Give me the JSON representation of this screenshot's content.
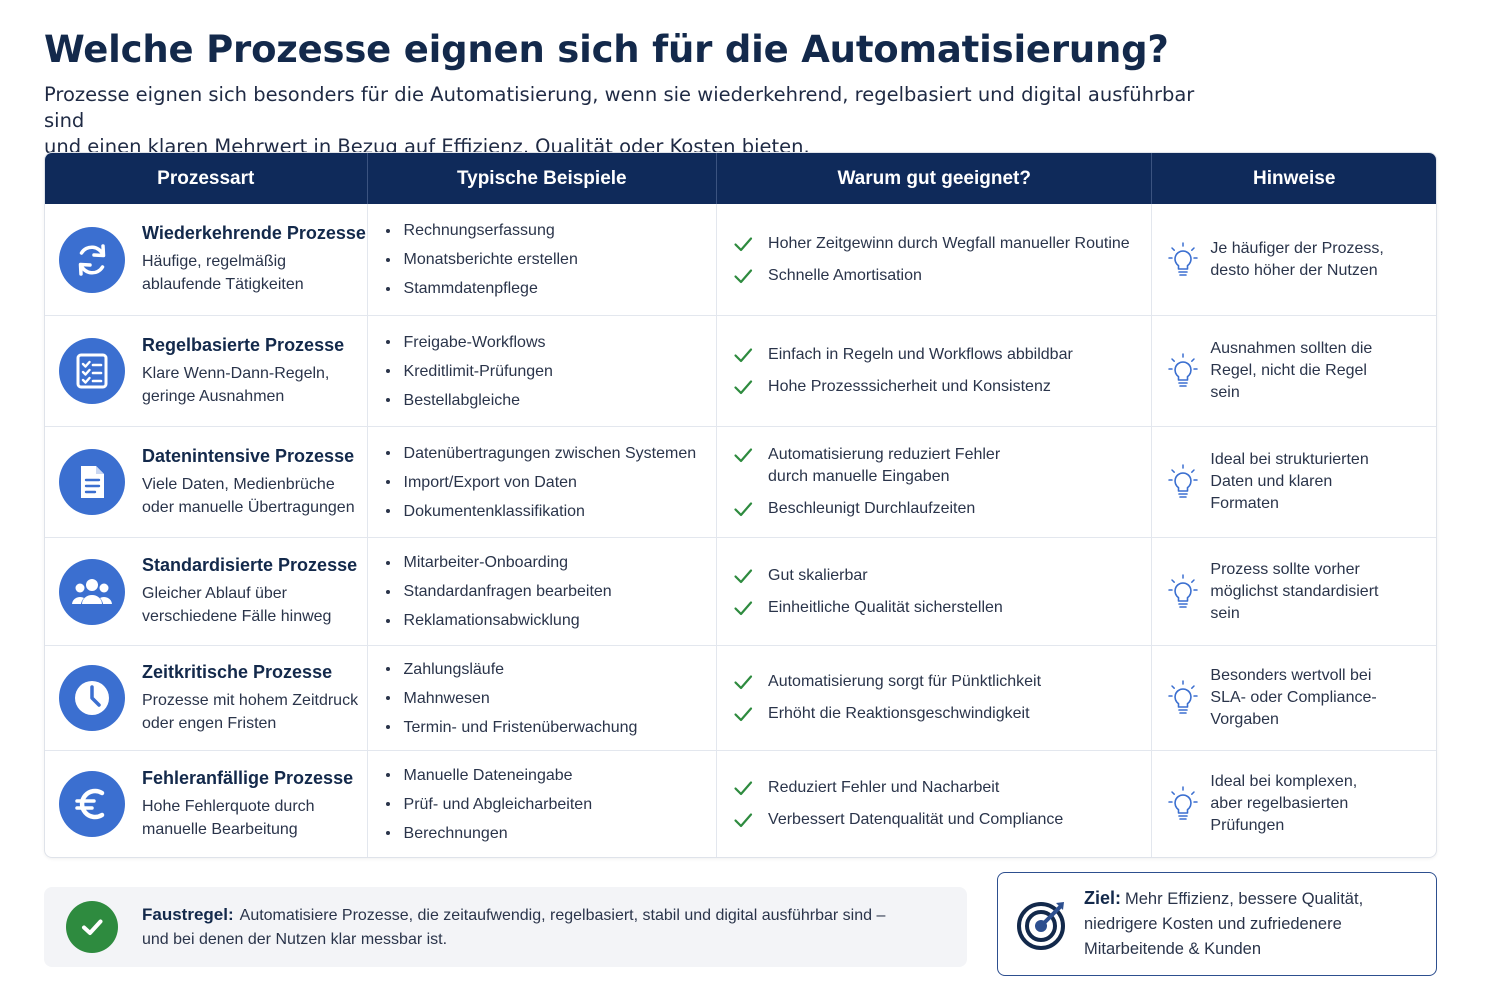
{
  "title": "Welche Prozesse eignen sich für die Automatisierung?",
  "subtitle_line1": "Prozesse eignen sich besonders für die Automatisierung, wenn sie wiederkehrend, regelbasiert und digital ausführbar sind",
  "subtitle_line2": "und einen klaren Mehrwert in Bezug auf Effizienz, Qualität oder Kosten bieten.",
  "table": {
    "headers": [
      "Prozessart",
      "Typische Beispiele",
      "Warum gut geeignet?",
      "Hinweise"
    ],
    "rows": [
      {
        "icon": "refresh-icon",
        "title": "Wiederkehrende Prozesse",
        "desc": [
          "Häufige, regelmäßig",
          "ablaufende Tätigkeiten"
        ],
        "examples": [
          "Rechnungserfassung",
          "Monatsberichte erstellen",
          "Stammdatenpflege"
        ],
        "why": [
          [
            "Hoher Zeitgewinn durch Wegfall manueller Routine"
          ],
          [
            "Schnelle Amortisation"
          ]
        ],
        "hint": [
          "Je häufiger der Prozess,",
          "desto höher der Nutzen"
        ]
      },
      {
        "icon": "checklist-icon",
        "title": "Regelbasierte Prozesse",
        "desc": [
          "Klare Wenn-Dann-Regeln,",
          "geringe Ausnahmen"
        ],
        "examples": [
          "Freigabe-Workflows",
          "Kreditlimit-Prüfungen",
          "Bestellabgleiche"
        ],
        "why": [
          [
            "Einfach in Regeln und Workflows abbildbar"
          ],
          [
            "Hohe Prozesssicherheit und Konsistenz"
          ]
        ],
        "hint": [
          "Ausnahmen sollten die",
          "Regel, nicht die Regel",
          "sein"
        ]
      },
      {
        "icon": "document-icon",
        "title": "Datenintensive Prozesse",
        "desc": [
          "Viele Daten, Medienbrüche",
          "oder manuelle Übertragungen"
        ],
        "examples": [
          "Datenübertragungen zwischen Systemen",
          "Import/Export von Daten",
          "Dokumentenklassifikation"
        ],
        "why": [
          [
            "Automatisierung reduziert Fehler",
            "durch manuelle Eingaben"
          ],
          [
            "Beschleunigt Durchlaufzeiten"
          ]
        ],
        "hint": [
          "Ideal bei strukturierten",
          "Daten und klaren",
          "Formaten"
        ]
      },
      {
        "icon": "people-icon",
        "title": "Standardisierte Prozesse",
        "desc": [
          "Gleicher Ablauf über",
          "verschiedene Fälle hinweg"
        ],
        "examples": [
          "Mitarbeiter-Onboarding",
          "Standardanfragen bearbeiten",
          "Reklamationsabwicklung"
        ],
        "why": [
          [
            "Gut skalierbar"
          ],
          [
            "Einheitliche Qualität sicherstellen"
          ]
        ],
        "hint": [
          "Prozess sollte vorher",
          "möglichst standardisiert",
          "sein"
        ]
      },
      {
        "icon": "clock-icon",
        "title": "Zeitkritische Prozesse",
        "desc": [
          "Prozesse mit hohem Zeitdruck",
          "oder engen Fristen"
        ],
        "examples": [
          "Zahlungsläufe",
          "Mahnwesen",
          "Termin- und Fristenüberwachung"
        ],
        "why": [
          [
            "Automatisierung sorgt für Pünktlichkeit"
          ],
          [
            "Erhöht die Reaktionsgeschwindigkeit"
          ]
        ],
        "hint": [
          "Besonders wertvoll bei",
          "SLA- oder Compliance-",
          "Vorgaben"
        ]
      },
      {
        "icon": "euro-icon",
        "title": "Fehleranfällige Prozesse",
        "desc": [
          "Hohe Fehlerquote durch",
          "manuelle Bearbeitung"
        ],
        "examples": [
          "Manuelle Dateneingabe",
          "Prüf- und Abgleicharbeiten",
          "Berechnungen"
        ],
        "why": [
          [
            "Reduziert Fehler und Nacharbeit"
          ],
          [
            "Verbessert Datenqualität und Compliance"
          ]
        ],
        "hint": [
          "Ideal bei komplexen,",
          "aber regelbasierten",
          "Prüfungen"
        ]
      }
    ]
  },
  "faustregel": {
    "label": "Faustregel:",
    "line1": "Automatisiere Prozesse, die zeitaufwendig, regelbasiert, stabil und digital ausführbar sind –",
    "line2": "und bei denen der Nutzen klar messbar ist."
  },
  "ziel": {
    "label": "Ziel:",
    "line1": "Mehr Effizienz, bessere Qualität,",
    "line2": "niedrigere Kosten und zufriedenere",
    "line3": "Mitarbeitende & Kunden"
  },
  "colors": {
    "header_bg": "#0f2a5a",
    "icon_blue": "#3b6fd0",
    "check_green": "#2e8b3f"
  }
}
